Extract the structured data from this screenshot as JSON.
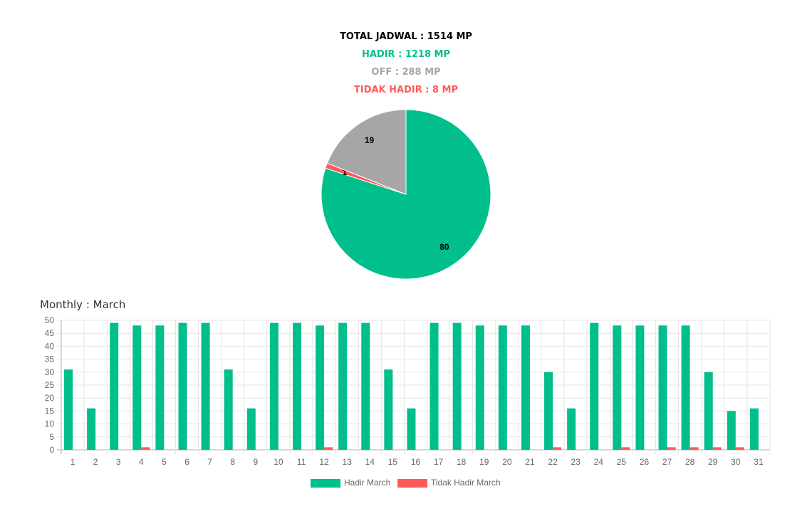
{
  "summary": {
    "total": "TOTAL JADWAL : 1514 MP",
    "hadir": "HADIR : 1218 MP",
    "off": "OFF : 288 MP",
    "tidak_hadir": "TIDAK HADIR : 8 MP"
  },
  "colors": {
    "hadir": "#00BF8C",
    "off": "#A6A6A6",
    "tidak_hadir": "#FF5A5A",
    "total": "#000000"
  },
  "monthly_title": "Monthly : March",
  "chart_data": [
    {
      "type": "pie",
      "slices": [
        {
          "value": 80,
          "label": "80",
          "color": "#00BF8C"
        },
        {
          "value": 1,
          "label": "1",
          "color": "#FF5A5A"
        },
        {
          "value": 19,
          "label": "19",
          "color": "#A6A6A6"
        }
      ]
    },
    {
      "type": "bar",
      "categories": [
        "1",
        "2",
        "3",
        "4",
        "5",
        "6",
        "7",
        "8",
        "9",
        "10",
        "11",
        "12",
        "13",
        "14",
        "15",
        "16",
        "17",
        "18",
        "19",
        "20",
        "21",
        "22",
        "23",
        "24",
        "25",
        "26",
        "27",
        "28",
        "29",
        "30",
        "31"
      ],
      "series": [
        {
          "name": "Hadir March",
          "color": "#00BF8C",
          "values": [
            31,
            16,
            49,
            48,
            48,
            49,
            49,
            31,
            16,
            49,
            49,
            48,
            49,
            49,
            31,
            16,
            49,
            49,
            48,
            48,
            48,
            30,
            16,
            49,
            48,
            48,
            48,
            48,
            30,
            15,
            16
          ]
        },
        {
          "name": "Tidak Hadir March",
          "color": "#FF5A5A",
          "values": [
            0,
            0,
            0,
            1,
            0,
            0,
            0,
            0,
            0,
            0,
            0,
            1,
            0,
            0,
            0,
            0,
            0,
            0,
            0,
            0,
            0,
            1,
            0,
            0,
            1,
            0,
            1,
            1,
            1,
            1,
            0
          ]
        }
      ],
      "ylim": [
        0,
        50
      ],
      "yticks": [
        0,
        5,
        10,
        15,
        20,
        25,
        30,
        35,
        40,
        45,
        50
      ],
      "grid": true,
      "legend": "bottom"
    }
  ]
}
